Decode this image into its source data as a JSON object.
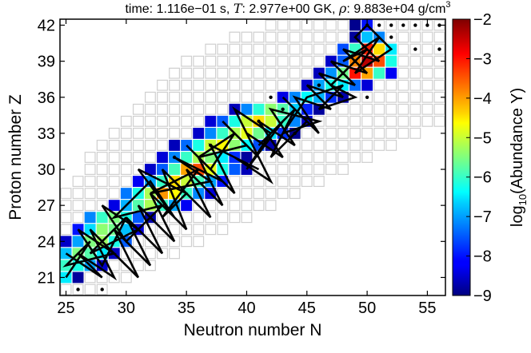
{
  "chart_data": {
    "type": "heatmap",
    "title": {
      "prefix": "time: ",
      "time": "1.116e−01 s",
      "sep1": ", ",
      "T_symbol": "T",
      "T_value": ": 2.977e+00 GK",
      "sep2": ", ",
      "rho_symbol": "ρ",
      "rho_value": ": 9.883e+04 g/cm",
      "rho_exp": "3"
    },
    "xlabel": "Neutron number N",
    "ylabel": "Proton number Z",
    "xlim": [
      24.5,
      56.5
    ],
    "ylim": [
      19.5,
      42.5
    ],
    "x_ticks": [
      25,
      30,
      35,
      40,
      45,
      50,
      55
    ],
    "y_ticks": [
      21,
      24,
      27,
      30,
      33,
      36,
      39,
      42
    ],
    "colorbar": {
      "label_prefix": "log",
      "label_sub": "10",
      "label_suffix": "(Abundance Y)",
      "range": [
        -9,
        -2
      ],
      "ticks": [
        "−9",
        "−8",
        "−7",
        "−6",
        "−5",
        "−4",
        "−3",
        "−2"
      ],
      "colormap": "jet"
    },
    "grid_cells_description_rows": [
      {
        "Z": 20,
        "N_min": 25,
        "N_max": 28
      },
      {
        "Z": 21,
        "N_min": 25,
        "N_max": 30
      },
      {
        "Z": 22,
        "N_min": 25,
        "N_max": 32
      },
      {
        "Z": 23,
        "N_min": 25,
        "N_max": 34
      },
      {
        "Z": 24,
        "N_min": 25,
        "N_max": 36
      },
      {
        "Z": 25,
        "N_min": 25,
        "N_max": 38
      },
      {
        "Z": 26,
        "N_min": 25,
        "N_max": 40
      },
      {
        "Z": 27,
        "N_min": 25,
        "N_max": 42
      },
      {
        "Z": 28,
        "N_min": 25,
        "N_max": 44
      },
      {
        "Z": 29,
        "N_min": 26,
        "N_max": 46
      },
      {
        "Z": 30,
        "N_min": 27,
        "N_max": 48
      },
      {
        "Z": 31,
        "N_min": 27,
        "N_max": 50
      },
      {
        "Z": 32,
        "N_min": 28,
        "N_max": 52
      },
      {
        "Z": 33,
        "N_min": 29,
        "N_max": 54
      },
      {
        "Z": 34,
        "N_min": 30,
        "N_max": 56
      },
      {
        "Z": 35,
        "N_min": 31,
        "N_max": 56
      },
      {
        "Z": 36,
        "N_min": 32,
        "N_max": 56
      },
      {
        "Z": 37,
        "N_min": 33,
        "N_max": 56
      },
      {
        "Z": 38,
        "N_min": 34,
        "N_max": 56
      },
      {
        "Z": 39,
        "N_min": 35,
        "N_max": 56
      },
      {
        "Z": 40,
        "N_min": 37,
        "N_max": 56
      },
      {
        "Z": 41,
        "N_min": 39,
        "N_max": 56
      },
      {
        "Z": 42,
        "N_min": 42,
        "N_max": 56
      }
    ],
    "abundance_bands": [
      {
        "Z": 21,
        "N_start": 25,
        "values": [
          -6.5,
          -8.8
        ]
      },
      {
        "Z": 22,
        "N_start": 25,
        "values": [
          -6.0,
          -6.2,
          -7.0,
          -8.5
        ]
      },
      {
        "Z": 23,
        "N_start": 25,
        "values": [
          -6.8,
          -5.5,
          -5.8,
          -6.5,
          -8.6
        ]
      },
      {
        "Z": 24,
        "N_start": 25,
        "values": [
          -8.5,
          -7.0,
          -5.5,
          -5.3,
          -6.2,
          -7.5
        ]
      },
      {
        "Z": 25,
        "N_start": 26,
        "values": [
          -8.0,
          -6.6,
          -5.4,
          -5.6,
          -6.8,
          -8.4
        ]
      },
      {
        "Z": 26,
        "N_start": 27,
        "values": [
          -7.2,
          -6.0,
          -5.5,
          -6.2,
          -7.5,
          -8.7
        ]
      },
      {
        "Z": 27,
        "N_start": 29,
        "values": [
          -8.3,
          -6.9,
          -5.8,
          -5.2,
          -6.0,
          -7.0,
          -8.2
        ]
      },
      {
        "Z": 28,
        "N_start": 30,
        "values": [
          -7.3,
          -6.2,
          -5.2,
          -3.9,
          -4.6,
          -6.0,
          -7.2,
          -8.4
        ]
      },
      {
        "Z": 29,
        "N_start": 31,
        "values": [
          -8.2,
          -7.0,
          -6.0,
          -4.4,
          -5.0,
          -5.9,
          -7.0,
          -8.0
        ]
      },
      {
        "Z": 30,
        "N_start": 32,
        "values": [
          -8.5,
          -7.5,
          -5.9,
          -4.0,
          -3.4,
          -4.8,
          -6.2,
          -7.5,
          -8.6
        ]
      },
      {
        "Z": 31,
        "N_start": 33,
        "values": [
          -8.4,
          -7.2,
          -6.0,
          -5.2,
          -5.5,
          -6.5,
          -7.8,
          -8.8
        ]
      },
      {
        "Z": 32,
        "N_start": 34,
        "values": [
          -8.6,
          -7.4,
          -6.2,
          -5.0,
          -4.6,
          -5.4,
          -6.4,
          -7.6,
          -8.7
        ]
      },
      {
        "Z": 33,
        "N_start": 36,
        "values": [
          -8.5,
          -7.2,
          -6.0,
          -5.2,
          -4.8,
          -5.6,
          -6.6,
          -7.8,
          -8.9
        ]
      },
      {
        "Z": 34,
        "N_start": 37,
        "values": [
          -8.4,
          -7.5,
          -6.2,
          -5.0,
          -4.4,
          -5.0,
          -6.0,
          -7.2,
          -8.5
        ]
      },
      {
        "Z": 35,
        "N_start": 39,
        "values": [
          -8.6,
          -7.2,
          -6.1,
          -5.4,
          -5.8,
          -6.7,
          -7.9,
          -8.8
        ]
      },
      {
        "Z": 36,
        "N_start": 43,
        "values": [
          -8.3,
          -7.2,
          -6.4,
          -6.9,
          -7.8,
          -8.7
        ]
      },
      {
        "Z": 37,
        "N_start": 45,
        "values": [
          -8.5,
          -7.0,
          -6.2,
          -6.5,
          -7.4,
          -8.4
        ]
      },
      {
        "Z": 38,
        "N_start": 46,
        "values": [
          -8.6,
          -7.1,
          -5.6,
          -3.0,
          -4.0,
          -6.0,
          -8.2
        ]
      },
      {
        "Z": 39,
        "N_start": 47,
        "values": [
          -8.5,
          -7.5,
          -3.8,
          -2.4,
          -3.4,
          -6.2
        ]
      },
      {
        "Z": 40,
        "N_start": 48,
        "values": [
          -7.6,
          -6.0,
          -3.1,
          -4.4,
          -6.5
        ]
      },
      {
        "Z": 41,
        "N_start": 49,
        "values": [
          -8.8,
          -6.8,
          -7.2
        ]
      },
      {
        "Z": 42,
        "N_start": 49,
        "values": [
          -8.9,
          -8.0
        ]
      }
    ],
    "marked_points": [
      {
        "N": 26,
        "Z": 20
      },
      {
        "N": 28,
        "Z": 20
      },
      {
        "N": 34,
        "Z": 31
      },
      {
        "N": 37,
        "Z": 32
      },
      {
        "N": 41,
        "Z": 34
      },
      {
        "N": 42,
        "Z": 36
      },
      {
        "N": 43,
        "Z": 35
      },
      {
        "N": 44,
        "Z": 33
      },
      {
        "N": 46,
        "Z": 37
      },
      {
        "N": 48,
        "Z": 38
      },
      {
        "N": 50,
        "Z": 36
      },
      {
        "N": 50,
        "Z": 42
      },
      {
        "N": 51,
        "Z": 42
      },
      {
        "N": 52,
        "Z": 42
      },
      {
        "N": 53,
        "Z": 42
      },
      {
        "N": 54,
        "Z": 42
      },
      {
        "N": 55,
        "Z": 42
      },
      {
        "N": 56,
        "Z": 42
      },
      {
        "N": 52,
        "Z": 41
      },
      {
        "N": 54,
        "Z": 40
      },
      {
        "N": 56,
        "Z": 40
      },
      {
        "N": 49,
        "Z": 39
      }
    ],
    "flow_path": [
      [
        25,
        21
      ],
      [
        27,
        24
      ],
      [
        25,
        22
      ],
      [
        29,
        23
      ],
      [
        26,
        25
      ],
      [
        28,
        22
      ],
      [
        30,
        26
      ],
      [
        27,
        23
      ],
      [
        31,
        25
      ],
      [
        28,
        27
      ],
      [
        30,
        24
      ],
      [
        33,
        27
      ],
      [
        29,
        26
      ],
      [
        32,
        29
      ],
      [
        34,
        26
      ],
      [
        31,
        30
      ],
      [
        35,
        28
      ],
      [
        33,
        26
      ],
      [
        36,
        30
      ],
      [
        32,
        28
      ],
      [
        37,
        29
      ],
      [
        34,
        31
      ],
      [
        38,
        29
      ],
      [
        35,
        32
      ],
      [
        37,
        30
      ],
      [
        39,
        33
      ],
      [
        36,
        31
      ],
      [
        40,
        32
      ],
      [
        38,
        34
      ],
      [
        41,
        31
      ],
      [
        39,
        35
      ],
      [
        42,
        33
      ],
      [
        40,
        30
      ],
      [
        43,
        34
      ],
      [
        41,
        32
      ],
      [
        44,
        35
      ],
      [
        42,
        31
      ],
      [
        45,
        34
      ],
      [
        43,
        36
      ],
      [
        46,
        33
      ],
      [
        44,
        36
      ],
      [
        47,
        35
      ],
      [
        45,
        37
      ],
      [
        48,
        36
      ],
      [
        46,
        38
      ],
      [
        49,
        37
      ],
      [
        47,
        39
      ],
      [
        50,
        38
      ],
      [
        48,
        40
      ],
      [
        51,
        39
      ],
      [
        49,
        41
      ],
      [
        50,
        42
      ],
      [
        52,
        40
      ],
      [
        49,
        38
      ],
      [
        51,
        41
      ],
      [
        48,
        39
      ],
      [
        50,
        40
      ],
      [
        47,
        37
      ],
      [
        49,
        36
      ],
      [
        46,
        35
      ],
      [
        48,
        37
      ],
      [
        45,
        36
      ],
      [
        43,
        33
      ],
      [
        46,
        34
      ],
      [
        42,
        35
      ],
      [
        44,
        32
      ],
      [
        41,
        34
      ],
      [
        43,
        31
      ],
      [
        40,
        33
      ],
      [
        42,
        29
      ],
      [
        39,
        31
      ],
      [
        41,
        30
      ],
      [
        37,
        32
      ],
      [
        39,
        28
      ],
      [
        36,
        31
      ],
      [
        38,
        27
      ],
      [
        35,
        30
      ],
      [
        37,
        26
      ],
      [
        34,
        29
      ],
      [
        36,
        27
      ],
      [
        33,
        30
      ],
      [
        35,
        25
      ],
      [
        32,
        28
      ],
      [
        34,
        24
      ],
      [
        31,
        27
      ],
      [
        33,
        23
      ],
      [
        30,
        26
      ],
      [
        32,
        22
      ],
      [
        29,
        25
      ],
      [
        31,
        21
      ],
      [
        28,
        24
      ],
      [
        30,
        22
      ],
      [
        27,
        25
      ],
      [
        29,
        21
      ],
      [
        26,
        23
      ],
      [
        28,
        21
      ],
      [
        25,
        23
      ]
    ]
  }
}
